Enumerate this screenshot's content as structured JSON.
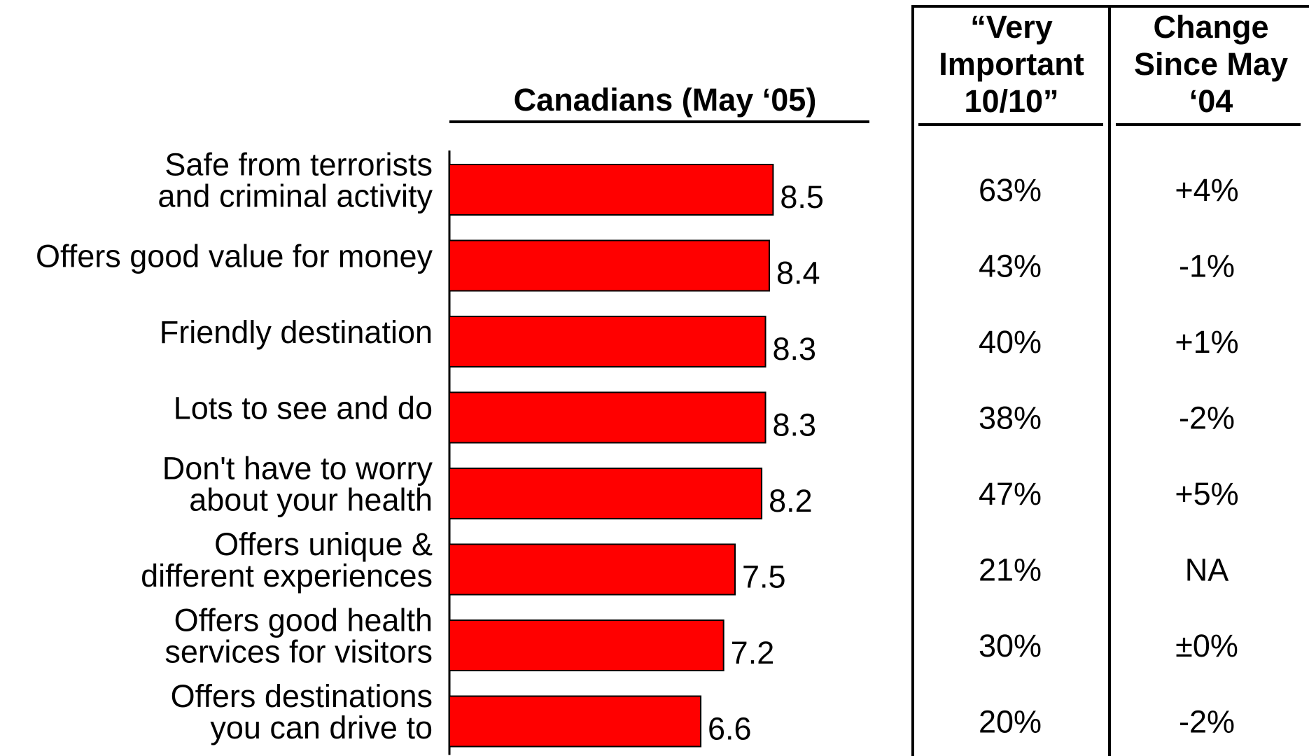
{
  "chart_data": {
    "type": "bar",
    "title": "Canadians (May ‘05)",
    "columns": {
      "very_important": "“Very Important 10/10”",
      "change": "Change Since May ‘04"
    },
    "categories": [
      [
        "Safe from terrorists",
        "and criminal activity"
      ],
      [
        "Offers good value for money"
      ],
      [
        "Friendly destination"
      ],
      [
        "Lots to see and do"
      ],
      [
        "Don't have to worry",
        "about your health"
      ],
      [
        "Offers unique &",
        "different experiences"
      ],
      [
        "Offers good health",
        "services for visitors"
      ],
      [
        "Offers destinations",
        "you can drive to"
      ]
    ],
    "values": [
      8.5,
      8.4,
      8.3,
      8.3,
      8.2,
      7.5,
      7.2,
      6.6
    ],
    "value_labels": [
      "8.5",
      "8.4",
      "8.3",
      "8.3",
      "8.2",
      "7.5",
      "7.2",
      "6.6"
    ],
    "very_important": [
      "63%",
      "43%",
      "40%",
      "38%",
      "47%",
      "21%",
      "30%",
      "20%"
    ],
    "change": [
      "+4%",
      "-1%",
      "+1%",
      "-2%",
      "+5%",
      "NA",
      "±0%",
      "-2%"
    ],
    "xlim": [
      0,
      10
    ],
    "bar_color": "#ff0000",
    "grid": false
  }
}
